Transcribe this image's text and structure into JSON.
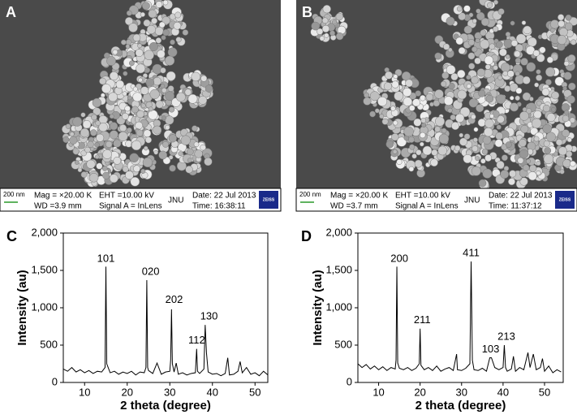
{
  "panels": [
    {
      "label": "A",
      "scale_bar": "200 nm",
      "mag": "Mag = ×20.00 K",
      "wd": "WD =3.9 mm",
      "eht": "EHT =10.00 kV",
      "signal": "Signal A = InLens",
      "org": "JNU",
      "date": "Date: 22 Jul 2013",
      "time": "Time: 16:38:11",
      "logo": "ZEISS"
    },
    {
      "label": "B",
      "scale_bar": "200 nm",
      "mag": "Mag = ×20.00 K",
      "wd": "WD =3.7 mm",
      "eht": "EHT =10.00 kV",
      "signal": "Signal A = InLens",
      "org": "JNU",
      "date": "Date: 22 Jul 2013",
      "time": "Time: 11:37:12",
      "logo": "ZEISS"
    }
  ],
  "chart_data": [
    {
      "type": "line",
      "label": "C",
      "xlabel": "2 theta (degree)",
      "ylabel": "Intensity (au)",
      "xlim": [
        5,
        53
      ],
      "xticks": [
        10,
        20,
        30,
        40,
        50
      ],
      "ylim": [
        0,
        2000
      ],
      "yticks": [
        0,
        500,
        {
          "value": 1000,
          "label": "1,000"
        },
        {
          "value": 1500,
          "label": "1,500"
        },
        {
          "value": 2000,
          "label": "2,000"
        }
      ],
      "x": [
        5,
        6,
        7,
        8,
        9,
        10,
        11,
        12,
        13,
        14,
        14.8,
        15,
        15.2,
        16,
        17,
        18,
        19,
        20,
        21,
        22,
        23,
        24,
        24.4,
        24.6,
        24.8,
        25,
        26,
        27,
        28,
        29,
        30,
        30.2,
        30.4,
        30.6,
        31,
        31.5,
        32,
        33,
        34,
        35,
        36,
        36.3,
        36.5,
        37,
        38,
        38.3,
        38.6,
        39,
        40,
        41,
        42,
        43,
        43.6,
        44,
        45,
        46,
        46.5,
        47,
        48,
        49,
        50,
        51,
        52,
        53
      ],
      "series": [
        {
          "color": "#000000",
          "values": [
            180,
            150,
            200,
            140,
            170,
            130,
            160,
            120,
            150,
            140,
            200,
            1550,
            250,
            130,
            150,
            110,
            140,
            120,
            150,
            100,
            140,
            130,
            200,
            1370,
            200,
            160,
            120,
            260,
            110,
            140,
            150,
            300,
            980,
            250,
            140,
            260,
            110,
            130,
            100,
            120,
            130,
            450,
            150,
            120,
            180,
            770,
            400,
            140,
            110,
            120,
            90,
            120,
            330,
            100,
            110,
            150,
            280,
            130,
            200,
            110,
            130,
            90,
            150,
            100
          ]
        }
      ],
      "annotations": [
        {
          "text": "101",
          "x": 15,
          "y": 1650
        },
        {
          "text": "020",
          "x": 25.5,
          "y": 1480
        },
        {
          "text": "202",
          "x": 31,
          "y": 1100
        },
        {
          "text": "112",
          "x": 36.3,
          "y": 560
        },
        {
          "text": "130",
          "x": 39.2,
          "y": 880
        }
      ]
    },
    {
      "type": "line",
      "label": "D",
      "xlabel": "2 theta (degree)",
      "ylabel": "Intensity (au)",
      "xlim": [
        5,
        54.5
      ],
      "xticks": [
        10,
        20,
        30,
        40,
        50
      ],
      "ylim": [
        0,
        2000
      ],
      "yticks": [
        0,
        500,
        {
          "value": 1000,
          "label": "1,000"
        },
        {
          "value": 1500,
          "label": "1,500"
        },
        {
          "value": 2000,
          "label": "2,000"
        }
      ],
      "x": [
        5,
        6,
        7,
        8,
        9,
        10,
        11,
        12,
        13,
        14,
        14.2,
        14.4,
        14.6,
        15,
        16,
        17,
        18,
        19,
        19.8,
        20,
        20.2,
        21,
        22,
        23,
        24,
        25,
        26,
        27,
        28,
        28.8,
        29,
        30,
        31,
        32,
        32.3,
        32.6,
        33,
        34,
        35,
        36,
        36.8,
        37.2,
        38,
        39,
        40,
        40.3,
        40.6,
        41,
        42,
        42.5,
        43,
        44,
        45,
        46,
        46.5,
        47.3,
        48,
        49,
        49.5,
        50,
        51,
        52,
        53,
        54
      ],
      "series": [
        {
          "color": "#000000",
          "values": [
            250,
            200,
            240,
            180,
            220,
            170,
            210,
            160,
            200,
            180,
            300,
            1550,
            260,
            190,
            170,
            200,
            160,
            190,
            250,
            720,
            230,
            170,
            200,
            160,
            220,
            150,
            180,
            200,
            160,
            380,
            170,
            160,
            190,
            250,
            1620,
            300,
            170,
            160,
            190,
            150,
            330,
            330,
            200,
            170,
            200,
            500,
            200,
            150,
            180,
            350,
            150,
            200,
            170,
            400,
            200,
            380,
            170,
            200,
            320,
            150,
            220,
            130,
            170,
            140
          ]
        }
      ],
      "annotations": [
        {
          "text": "200",
          "x": 15,
          "y": 1650
        },
        {
          "text": "211",
          "x": 20.5,
          "y": 830
        },
        {
          "text": "411",
          "x": 32.3,
          "y": 1730
        },
        {
          "text": "103",
          "x": 37,
          "y": 440
        },
        {
          "text": "213",
          "x": 40.8,
          "y": 610
        }
      ]
    }
  ]
}
